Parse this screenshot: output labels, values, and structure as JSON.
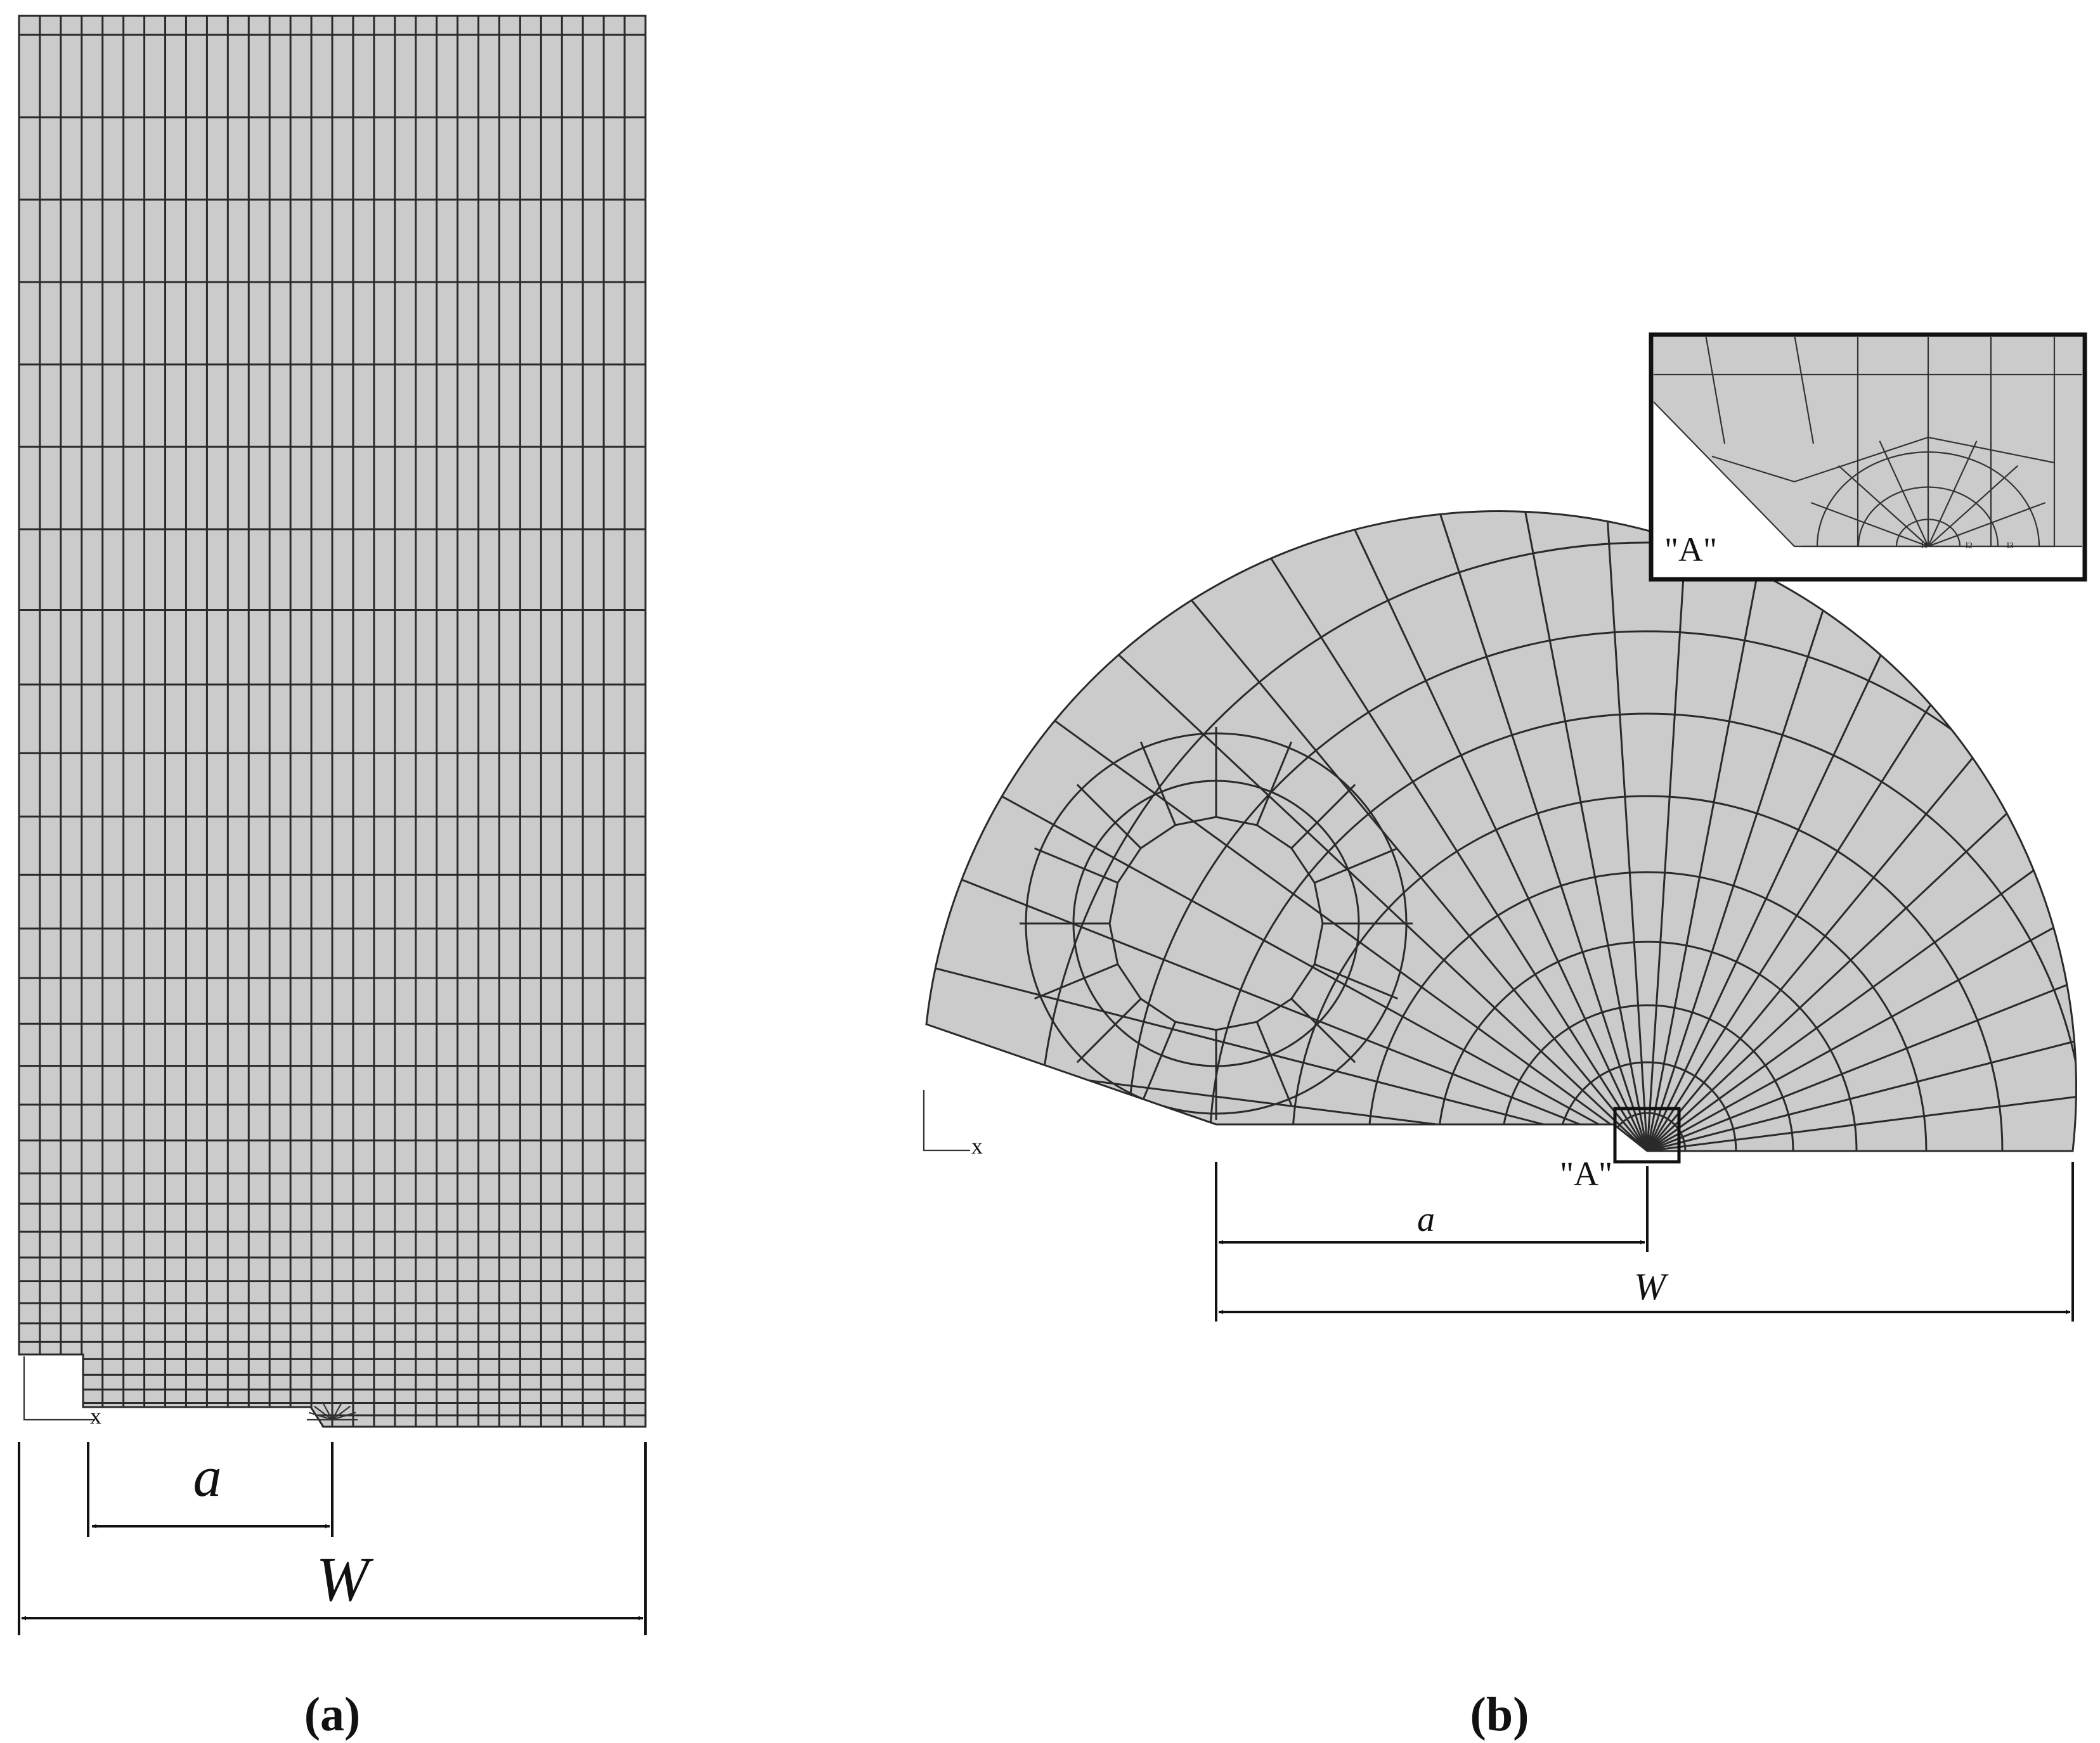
{
  "colors": {
    "mesh_fill": "#cbcbcb",
    "mesh_line": "#2a2a2a",
    "background": "#ffffff"
  },
  "panel_a": {
    "caption": "(a)",
    "dim_a_label": "a",
    "dim_w_label": "W",
    "axis_x_label": "x"
  },
  "panel_b": {
    "caption": "(b)",
    "dim_a_label": "a",
    "dim_w_label": "W",
    "axis_x_label": "x",
    "detail_label": "\"A\"",
    "inset": {
      "label": "\"A\"",
      "node_labels": [
        "l1",
        "l2",
        "l3"
      ]
    }
  }
}
